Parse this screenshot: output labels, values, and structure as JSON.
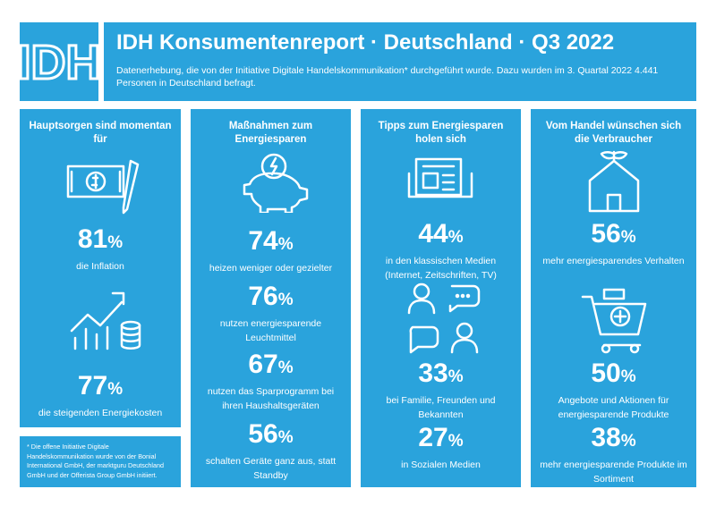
{
  "header": {
    "logo": "IDH",
    "title": "IDH Konsumentenreport · Deutschland · Q3 2022",
    "subtitle": "Datenerhebung, die von der Initiative Digitale Handelskommunikation* durchgeführt wurde. Dazu wurden im 3. Quartal 2022 4.441 Personen in Deutschland befragt."
  },
  "columns": [
    {
      "heading": "Hauptsorgen sind momentan für",
      "items": [
        {
          "value": 81,
          "unit": "%",
          "text": "die Inflation"
        },
        {
          "value": 77,
          "unit": "%",
          "text": "die steigenden Energiekosten"
        }
      ]
    },
    {
      "heading": "Maßnahmen zum Energiesparen",
      "items": [
        {
          "value": 74,
          "unit": "%",
          "text": "heizen weniger oder gezielter"
        },
        {
          "value": 76,
          "unit": "%",
          "text": "nutzen energiesparende Leuchtmittel"
        },
        {
          "value": 67,
          "unit": "%",
          "text": "nutzen das Sparprogramm bei ihren Haushaltsgeräten"
        },
        {
          "value": 56,
          "unit": "%",
          "text": "schalten Geräte ganz aus, statt Standby"
        }
      ]
    },
    {
      "heading": "Tipps zum Energiesparen holen sich",
      "items": [
        {
          "value": 44,
          "unit": "%",
          "text": "in den klassischen Medien (Internet, Zeitschriften, TV)"
        },
        {
          "value": 33,
          "unit": "%",
          "text": "bei Familie, Freunden und Bekannten"
        },
        {
          "value": 27,
          "unit": "%",
          "text": "in Sozialen Medien"
        }
      ]
    },
    {
      "heading": "Vom Handel wünschen sich die Verbraucher",
      "items": [
        {
          "value": 56,
          "unit": "%",
          "text": "mehr energiesparendes Verhalten"
        },
        {
          "value": 50,
          "unit": "%",
          "text": "Angebote und Aktionen für energiesparende Produkte"
        },
        {
          "value": 38,
          "unit": "%",
          "text": "mehr energiesparende Produkte im Sortiment"
        }
      ]
    }
  ],
  "footnote": "* Die offene Initiative Digitale Handelskommunikation wurde von der Bonial International GmbH, der marktguru Deutschland GmbH und der Offerista Group GmbH initiiert."
}
